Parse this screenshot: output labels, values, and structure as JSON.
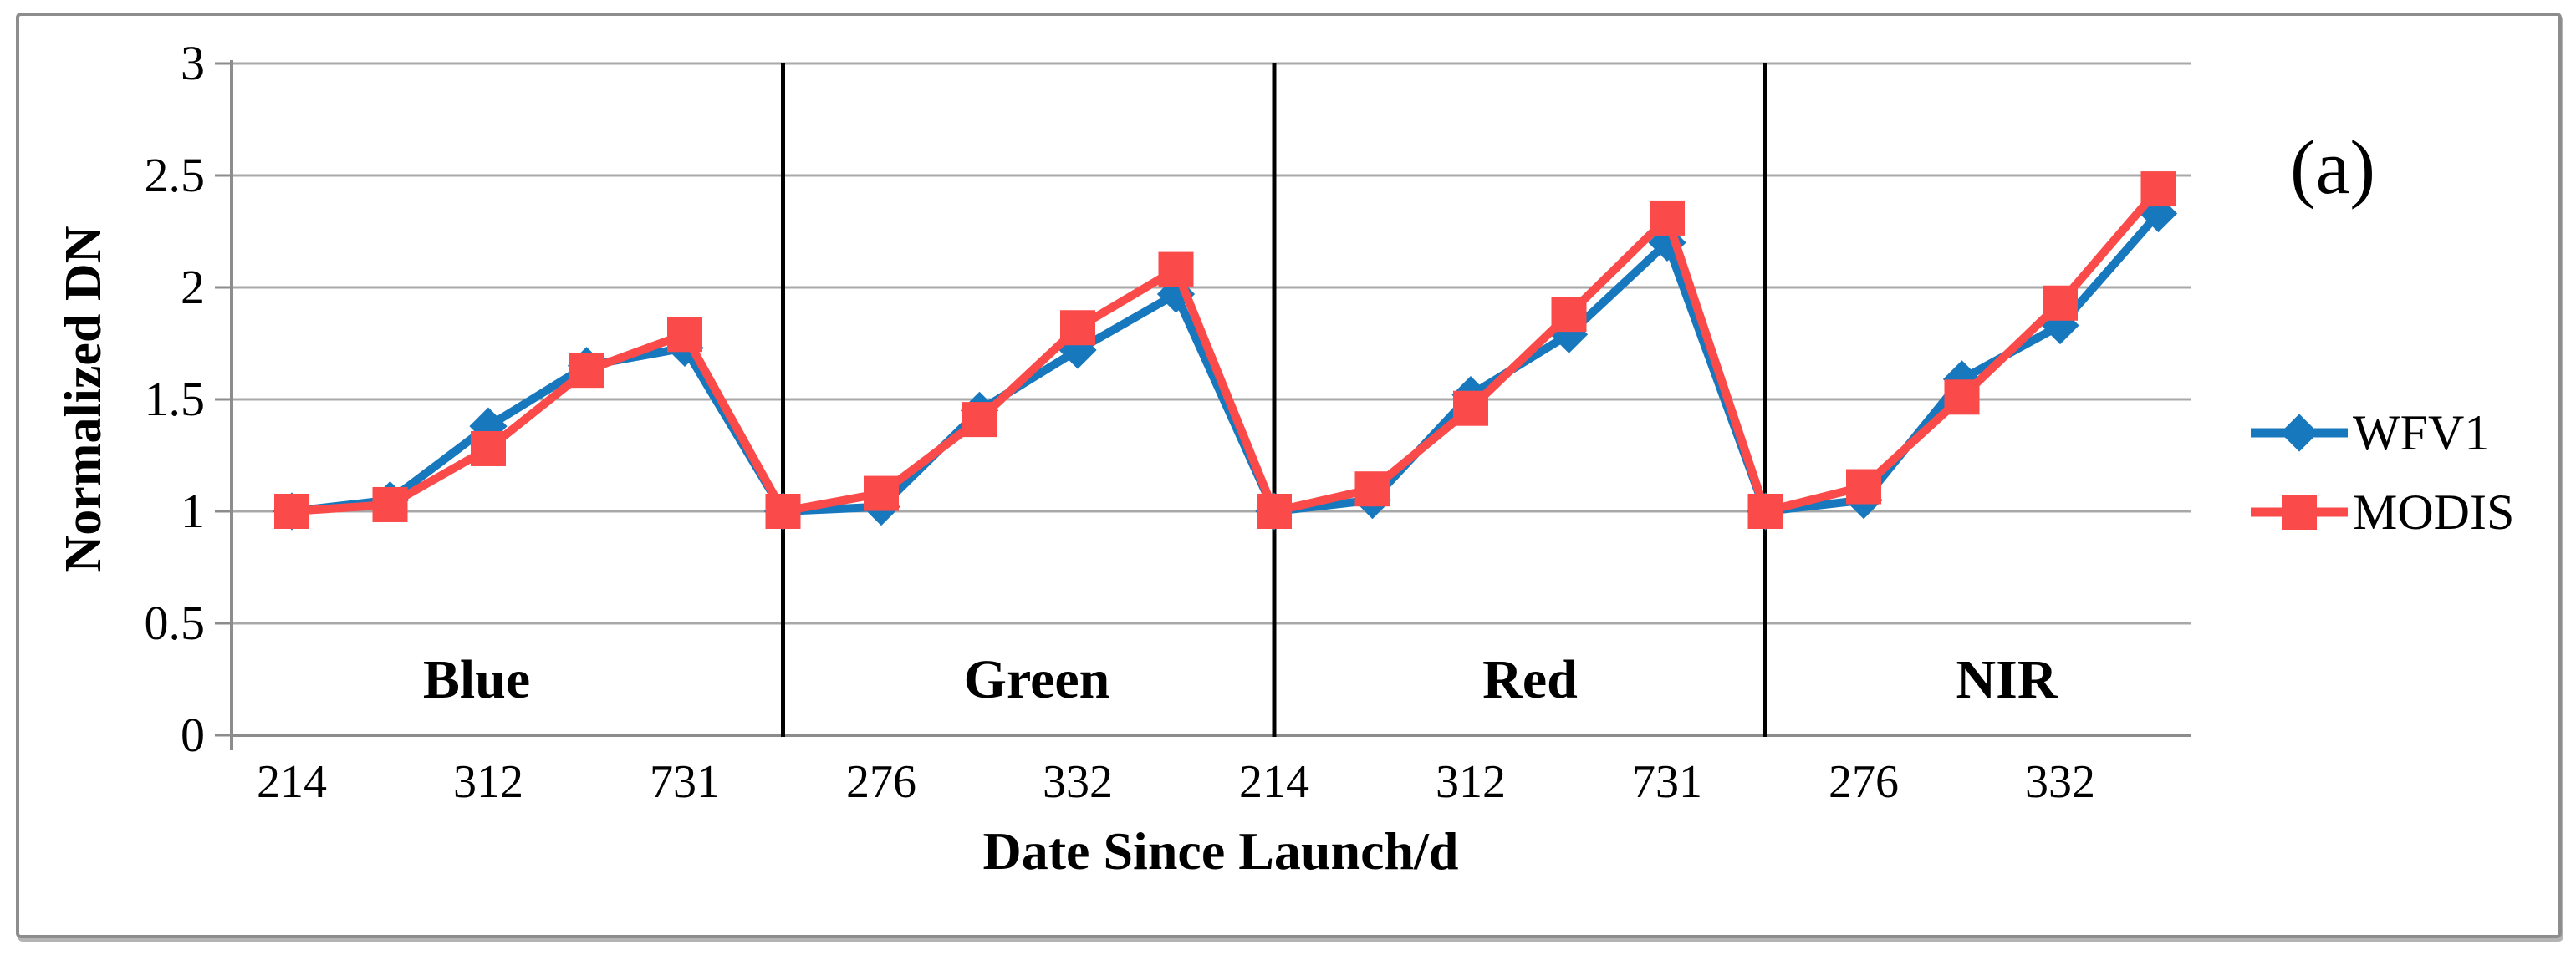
{
  "figure_label": "(a)",
  "axes": {
    "y_title": "Normalized DN",
    "x_title": "Date Since Launch/d",
    "y_ticks": [
      "3",
      "2.5",
      "2",
      "1.5",
      "1",
      "0.5",
      "0"
    ],
    "x_ticks": [
      "214",
      "312",
      "731",
      "276",
      "332",
      "214",
      "312",
      "731",
      "276",
      "332"
    ]
  },
  "band_labels": [
    "Blue",
    "Green",
    "Red",
    "NIR"
  ],
  "legend": {
    "items": [
      {
        "label": "WFV1",
        "marker": "diamond",
        "color": "#1878be"
      },
      {
        "label": "MODIS",
        "marker": "square",
        "color": "#fa4b4a"
      }
    ]
  },
  "colors": {
    "wfv1_blue": "#1878be",
    "modis_red": "#fa4b4a",
    "gridline": "#a8a8a8",
    "axis": "#8c8c8c",
    "divider": "#000000",
    "frame": "#8d8d8d",
    "text": "#000000"
  },
  "chart_data": {
    "type": "line",
    "title": "",
    "xlabel": "Date Since Launch/d",
    "ylabel": "Normalized DN",
    "ylim": [
      0,
      3
    ],
    "y_tick_step": 0.5,
    "grid": true,
    "legend_position": "right",
    "bands": [
      {
        "name": "Blue",
        "x": [
          214,
          276,
          312,
          332,
          731
        ]
      },
      {
        "name": "Green",
        "x": [
          214,
          276,
          312,
          332,
          731
        ]
      },
      {
        "name": "Red",
        "x": [
          214,
          276,
          312,
          332,
          731
        ]
      },
      {
        "name": "NIR",
        "x": [
          214,
          276,
          312,
          332,
          731
        ]
      }
    ],
    "x_tick_shown_global_indices": [
      0,
      2,
      4,
      6,
      8,
      10,
      12,
      14,
      16,
      18
    ],
    "divider_at_band_start_indices": [
      5,
      10,
      15
    ],
    "series": [
      {
        "name": "WFV1",
        "marker": "diamond",
        "color": "#1878be",
        "values": {
          "Blue": [
            1.0,
            1.05,
            1.38,
            1.65,
            1.73
          ],
          "Green": [
            1.0,
            1.02,
            1.45,
            1.72,
            1.97
          ],
          "Red": [
            1.0,
            1.05,
            1.52,
            1.79,
            2.2
          ],
          "NIR": [
            1.0,
            1.05,
            1.59,
            1.83,
            2.33
          ]
        }
      },
      {
        "name": "MODIS",
        "marker": "square",
        "color": "#fa4b4a",
        "values": {
          "Blue": [
            1.0,
            1.03,
            1.28,
            1.63,
            1.79
          ],
          "Green": [
            1.0,
            1.08,
            1.41,
            1.82,
            2.08
          ],
          "Red": [
            1.0,
            1.1,
            1.46,
            1.88,
            2.31
          ],
          "NIR": [
            1.0,
            1.11,
            1.51,
            1.93,
            2.44
          ]
        }
      }
    ]
  }
}
